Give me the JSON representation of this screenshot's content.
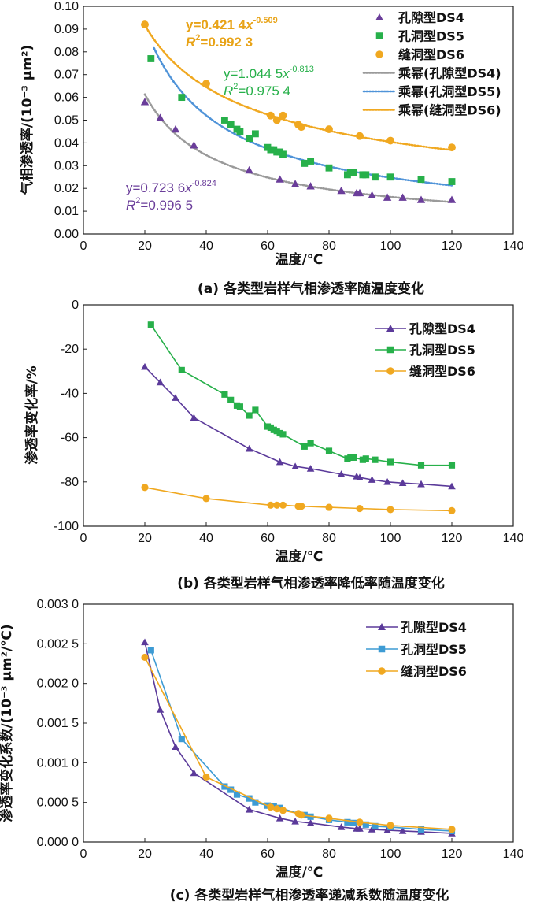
{
  "chart_data": [
    {
      "id": "a",
      "type": "scatter",
      "caption": "(a) 各类型岩样气相渗透率随温度变化",
      "xlabel": "温度/℃",
      "ylabel": "气相渗透率/(10⁻³ μm²)",
      "xlim": [
        0,
        140
      ],
      "ylim": [
        0.0,
        0.1
      ],
      "xticks": [
        "0",
        "20",
        "40",
        "60",
        "80",
        "100",
        "120",
        "140"
      ],
      "yticks": [
        "0.00",
        "0.01",
        "0.02",
        "0.03",
        "0.04",
        "0.05",
        "0.06",
        "0.07",
        "0.08",
        "0.09",
        "0.10"
      ],
      "legend_position": "top-right",
      "series": [
        {
          "name": "孔隙型DS4",
          "color": "#6a3d9a",
          "marker": "triangle",
          "x": [
            20,
            25,
            30,
            36,
            54,
            64,
            69,
            74,
            84,
            89,
            90,
            94,
            99,
            104,
            110,
            120
          ],
          "y": [
            0.058,
            0.051,
            0.046,
            0.039,
            0.028,
            0.024,
            0.022,
            0.021,
            0.019,
            0.018,
            0.018,
            0.017,
            0.016,
            0.016,
            0.015,
            0.015
          ]
        },
        {
          "name": "孔洞型DS5",
          "color": "#27b04a",
          "marker": "square",
          "x": [
            22,
            32,
            46,
            48,
            50,
            51,
            54,
            56,
            60,
            61,
            62,
            63,
            64,
            65,
            72,
            74,
            80,
            86,
            87,
            88,
            91,
            92,
            95,
            100,
            110,
            120
          ],
          "y": [
            0.077,
            0.06,
            0.05,
            0.048,
            0.046,
            0.045,
            0.042,
            0.044,
            0.038,
            0.037,
            0.037,
            0.036,
            0.036,
            0.035,
            0.031,
            0.032,
            0.029,
            0.026,
            0.027,
            0.027,
            0.026,
            0.026,
            0.025,
            0.025,
            0.024,
            0.023
          ]
        },
        {
          "name": "缝洞型DS6",
          "color": "#f0a820",
          "marker": "circle",
          "x": [
            20,
            40,
            61,
            63,
            65,
            70,
            71,
            80,
            90,
            100,
            120
          ],
          "y": [
            0.092,
            0.066,
            0.052,
            0.05,
            0.052,
            0.048,
            0.047,
            0.046,
            0.043,
            0.041,
            0.038
          ]
        }
      ],
      "fits": [
        {
          "name": "乘幂(孔隙型DS4)",
          "color": "#9a9a9a",
          "a": 0.7236,
          "b": -0.824,
          "x_range": [
            20,
            120
          ]
        },
        {
          "name": "乘幂(孔洞型DS5)",
          "color": "#4f93d8",
          "a": 1.0445,
          "b": -0.813,
          "x_range": [
            23,
            120
          ]
        },
        {
          "name": "乘幂(缝洞型DS6)",
          "color": "#f0a820",
          "a": 0.4214,
          "b": -0.509,
          "x_range": [
            20,
            120
          ]
        }
      ],
      "equations": [
        {
          "color": "#6a3d9a",
          "bold": false,
          "line1_prefix": "y=0.723 6",
          "line1_var": "x",
          "line1_sup": "-0.824",
          "line2_r": "R",
          "line2_sup": "2",
          "line2_text": "=0.996 5"
        },
        {
          "color": "#27b04a",
          "bold": false,
          "line1_prefix": "y=1.044 5",
          "line1_var": "x",
          "line1_sup": "-0.813",
          "line2_r": "R",
          "line2_sup": "2",
          "line2_text": "=0.975 4"
        },
        {
          "color": "#e8a317",
          "bold": true,
          "line1_prefix": "y=0.421 4",
          "line1_var": "x",
          "line1_sup": "-0.509",
          "line2_r": "R",
          "line2_sup": "2",
          "line2_text": "=0.992 3"
        }
      ]
    },
    {
      "id": "b",
      "type": "line",
      "caption": "(b) 各类型岩样气相渗透率降低率随温度变化",
      "xlabel": "温度/℃",
      "ylabel": "渗透率变化率/%",
      "xlim": [
        0,
        140
      ],
      "ylim": [
        -100,
        0
      ],
      "xticks": [
        "0",
        "20",
        "40",
        "60",
        "80",
        "100",
        "120",
        "140"
      ],
      "yticks": [
        "-100",
        "-80",
        "-60",
        "-40",
        "-20",
        "0"
      ],
      "legend_position": "top-right",
      "series": [
        {
          "name": "孔隙型DS4",
          "color": "#5b3a9a",
          "marker": "triangle",
          "x": [
            20,
            25,
            30,
            36,
            54,
            64,
            69,
            74,
            84,
            89,
            90,
            94,
            99,
            104,
            110,
            120
          ],
          "y": [
            -28,
            -35,
            -42,
            -51,
            -65,
            -71,
            -73,
            -74,
            -76.5,
            -77.5,
            -78,
            -79,
            -80,
            -80.5,
            -81,
            -82
          ]
        },
        {
          "name": "孔洞型DS5",
          "color": "#27b04a",
          "marker": "square",
          "x": [
            22,
            32,
            46,
            48,
            50,
            51,
            54,
            56,
            60,
            61,
            62,
            63,
            64,
            65,
            72,
            74,
            80,
            86,
            87,
            88,
            91,
            92,
            95,
            100,
            110,
            120
          ],
          "y": [
            -9,
            -29.5,
            -40.5,
            -43,
            -45.5,
            -46,
            -50,
            -47.5,
            -55,
            -55.5,
            -56.5,
            -57,
            -58,
            -58.5,
            -64,
            -62.5,
            -66,
            -69.5,
            -69,
            -69,
            -70,
            -69.5,
            -70,
            -71,
            -72.5,
            -72.5
          ]
        },
        {
          "name": "缝洞型DS6",
          "color": "#f0a820",
          "marker": "circle",
          "x": [
            20,
            40,
            61,
            63,
            65,
            70,
            71,
            80,
            90,
            100,
            120
          ],
          "y": [
            -82.5,
            -87.5,
            -90.5,
            -90.5,
            -90.5,
            -91,
            -91,
            -91.5,
            -92,
            -92.5,
            -93
          ]
        }
      ]
    },
    {
      "id": "c",
      "type": "line",
      "caption": "(c) 各类型岩样气相渗透率递减系数随温度变化",
      "xlabel": "温度/℃",
      "ylabel": "渗透率变化系数/(10⁻³ μm²/℃)",
      "xlim": [
        0,
        140
      ],
      "ylim": [
        0,
        0.003
      ],
      "xticks": [
        "0",
        "20",
        "40",
        "60",
        "80",
        "100",
        "120",
        "140"
      ],
      "yticks": [
        "0.000 0",
        "0.000 5",
        "0.001 0",
        "0.001 5",
        "0.002 0",
        "0.002 5",
        "0.003 0"
      ],
      "legend_position": "top-right",
      "series": [
        {
          "name": "孔隙型DS4",
          "color": "#5b3a9a",
          "marker": "triangle",
          "x": [
            20,
            25,
            30,
            36,
            54,
            64,
            69,
            74,
            84,
            89,
            90,
            94,
            99,
            104,
            110,
            120
          ],
          "y": [
            0.00252,
            0.00167,
            0.0012,
            0.00087,
            0.00041,
            0.0003,
            0.00026,
            0.00024,
            0.00019,
            0.00017,
            0.00017,
            0.00016,
            0.00015,
            0.00014,
            0.00013,
            0.00011
          ]
        },
        {
          "name": "孔洞型DS5",
          "color": "#3d9bd4",
          "marker": "square",
          "x": [
            22,
            32,
            46,
            48,
            50,
            54,
            56,
            60,
            62,
            64,
            72,
            74,
            80,
            86,
            88,
            92,
            95,
            100,
            110,
            120
          ],
          "y": [
            0.00242,
            0.0013,
            0.0007,
            0.00066,
            0.0006,
            0.00055,
            0.0005,
            0.00046,
            0.00045,
            0.00043,
            0.00034,
            0.00032,
            0.00028,
            0.00025,
            0.00024,
            0.00022,
            0.0002,
            0.00019,
            0.00016,
            0.00014
          ]
        },
        {
          "name": "缝洞型DS6",
          "color": "#f0a820",
          "marker": "circle",
          "x": [
            20,
            40,
            61,
            63,
            65,
            70,
            71,
            80,
            90,
            100,
            120
          ],
          "y": [
            0.00233,
            0.00082,
            0.00044,
            0.00042,
            0.0004,
            0.00036,
            0.00034,
            0.0003,
            0.00025,
            0.00021,
            0.00016
          ]
        }
      ]
    }
  ]
}
